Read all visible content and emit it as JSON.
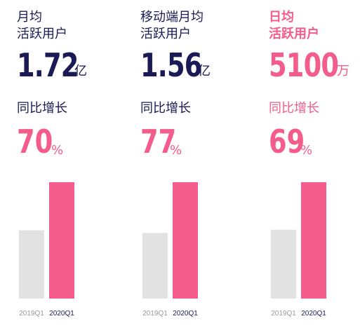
{
  "colors": {
    "navy": "#1b1a57",
    "pink": "#f45d8b",
    "bar_2019": "#e2e2e2",
    "bar_2020": "#f45d8b",
    "tick_2019": "#9a9a9a",
    "tick_2020": "#1b1a57"
  },
  "columns": [
    {
      "label_line1": "月均",
      "label_line2": "活跃用户",
      "value": "1.72",
      "value_unit": "亿",
      "yoy_label": "同比增长",
      "yoy_value": "70",
      "yoy_unit": "%",
      "accent": "navy"
    },
    {
      "label_line1": "移动端月均",
      "label_line2": "活跃用户",
      "value": "1.56",
      "value_unit": "亿",
      "yoy_label": "同比增长",
      "yoy_value": "77",
      "yoy_unit": "%",
      "accent": "navy"
    },
    {
      "label_line1": "日均",
      "label_line2": "活跃用户",
      "value": "5100",
      "value_unit": "万",
      "yoy_label": "同比增长",
      "yoy_value": "69",
      "yoy_unit": "%",
      "accent": "pink"
    }
  ],
  "chart_data": [
    {
      "type": "bar",
      "categories": [
        "2019Q1",
        "2020Q1"
      ],
      "values": [
        1.01,
        1.72
      ],
      "ylim": [
        0,
        1.72
      ],
      "grid": false
    },
    {
      "type": "bar",
      "categories": [
        "2019Q1",
        "2020Q1"
      ],
      "values": [
        0.88,
        1.56
      ],
      "ylim": [
        0,
        1.56
      ],
      "grid": false
    },
    {
      "type": "bar",
      "categories": [
        "2019Q1",
        "2020Q1"
      ],
      "values": [
        3018,
        5100
      ],
      "ylim": [
        0,
        5100
      ],
      "grid": false
    }
  ]
}
